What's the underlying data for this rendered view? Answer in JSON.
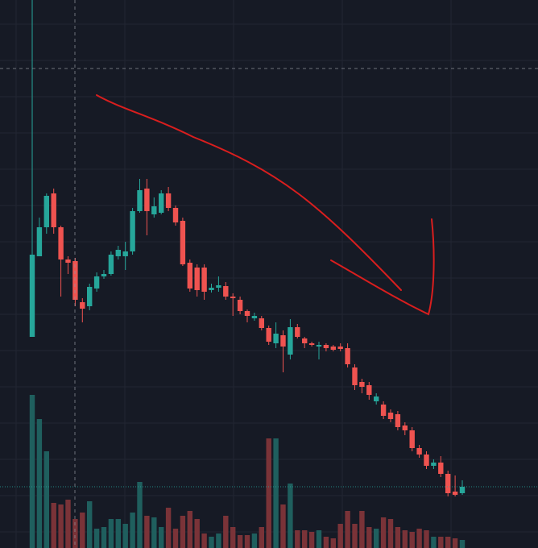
{
  "chart_data": {
    "type": "candlestick",
    "up_color": "#26a69a",
    "down_color": "#ef5350",
    "volume_up_color": "#1f5f5e",
    "volume_down_color": "#7a3338",
    "ylim": [
      0,
      680
    ],
    "y2lim": [
      0,
      680
    ],
    "open": [
      262,
      362,
      398,
      440,
      398,
      358,
      356,
      305,
      300,
      322,
      337,
      340,
      362,
      362,
      368,
      418,
      446,
      414,
      416,
      440,
      422,
      406,
      354,
      348,
      348,
      320,
      323,
      325,
      312,
      308,
      294,
      285,
      285,
      273,
      254,
      264,
      240,
      274,
      260,
      254,
      250,
      252,
      250,
      250,
      248,
      224,
      206,
      202,
      182,
      178,
      168,
      166,
      152,
      146,
      124,
      116,
      102,
      106,
      92,
      70,
      68
    ],
    "high": [
      680,
      410,
      440,
      446,
      400,
      362,
      360,
      310,
      328,
      342,
      345,
      368,
      375,
      380,
      422,
      458,
      458,
      435,
      444,
      448,
      425,
      410,
      358,
      352,
      352,
      328,
      337,
      330,
      316,
      312,
      296,
      292,
      288,
      276,
      280,
      270,
      284,
      278,
      262,
      256,
      256,
      254,
      252,
      254,
      254,
      228,
      210,
      206,
      192,
      182,
      172,
      170,
      156,
      150,
      128,
      120,
      110,
      114,
      96,
      90,
      84
    ],
    "low": [
      262,
      362,
      390,
      390,
      312,
      340,
      300,
      280,
      295,
      318,
      334,
      338,
      358,
      345,
      364,
      416,
      388,
      410,
      414,
      418,
      400,
      350,
      318,
      312,
      308,
      317,
      318,
      308,
      288,
      290,
      280,
      282,
      270,
      252,
      248,
      218,
      234,
      260,
      248,
      250,
      234,
      244,
      244,
      244,
      224,
      196,
      192,
      184,
      178,
      160,
      156,
      146,
      140,
      120,
      112,
      98,
      98,
      88,
      64,
      64,
      66
    ],
    "close": [
      364,
      398,
      437,
      398,
      358,
      354,
      308,
      297,
      324,
      337,
      340,
      364,
      370,
      368,
      418,
      444,
      418,
      424,
      440,
      422,
      404,
      352,
      322,
      320,
      318,
      323,
      326,
      312,
      310,
      294,
      288,
      288,
      273,
      256,
      266,
      250,
      274,
      262,
      254,
      252,
      252,
      248,
      246,
      247,
      228,
      202,
      200,
      190,
      188,
      164,
      160,
      150,
      146,
      124,
      116,
      102,
      106,
      92,
      68,
      66,
      76
    ],
    "volume": [
      190,
      160,
      120,
      56,
      54,
      60,
      36,
      44,
      58,
      24,
      26,
      36,
      36,
      30,
      44,
      82,
      40,
      38,
      26,
      50,
      24,
      40,
      46,
      36,
      18,
      14,
      18,
      40,
      26,
      16,
      16,
      18,
      26,
      136,
      136,
      54,
      80,
      22,
      22,
      20,
      22,
      14,
      12,
      30,
      46,
      30,
      46,
      26,
      24,
      38,
      36,
      26,
      22,
      20,
      24,
      22,
      14,
      14,
      14,
      12,
      10
    ]
  }
}
